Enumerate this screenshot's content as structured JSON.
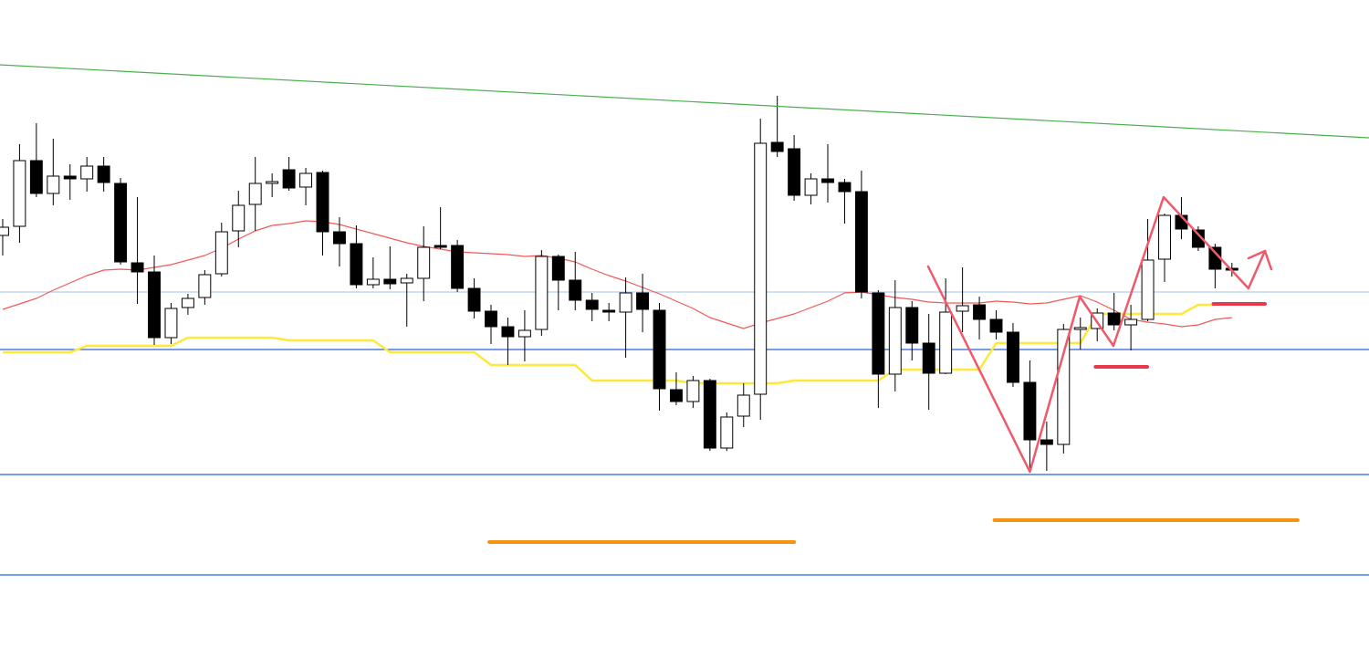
{
  "chart_data": {
    "type": "candlestick",
    "xlim": [
      -0.16,
      81.14
    ],
    "ylim": [
      0,
      709
    ],
    "up_color": "#ffffff",
    "down_color": "#000000",
    "open": [
      451,
      461,
      533,
      497,
      516,
      513,
      527,
      508,
      421,
      411,
      339,
      372,
      383,
      409,
      456,
      485,
      508,
      523,
      504,
      520,
      455,
      442,
      397,
      403,
      399,
      404,
      440,
      440,
      393,
      368,
      351,
      340,
      348,
      428,
      402,
      380,
      369,
      367,
      388,
      369,
      282,
      269,
      292,
      218,
      253,
      277,
      553,
      546,
      495,
      513,
      509,
      499,
      388,
      299,
      372,
      333,
      300,
      368,
      375,
      359,
      345,
      290,
      227,
      222,
      348,
      349,
      366,
      353,
      359,
      425,
      473,
      457,
      438,
      415
    ],
    "high": [
      469,
      551,
      574,
      557,
      529,
      537,
      537,
      514,
      493,
      429,
      377,
      387,
      413,
      465,
      500,
      537,
      519,
      537,
      525,
      522,
      471,
      462,
      427,
      439,
      409,
      461,
      482,
      446,
      404,
      375,
      361,
      369,
      435,
      430,
      433,
      388,
      377,
      405,
      409,
      377,
      301,
      297,
      294,
      257,
      289,
      579,
      604,
      561,
      519,
      551,
      513,
      522,
      391,
      402,
      379,
      365,
      404,
      416,
      384,
      369,
      355,
      314,
      247,
      354,
      361,
      371,
      388,
      375,
      469,
      475,
      493,
      461,
      442,
      421
    ],
    "low": [
      429,
      443,
      493,
      484,
      490,
      499,
      499,
      419,
      376,
      331,
      332,
      364,
      375,
      406,
      438,
      456,
      493,
      500,
      484,
      429,
      417,
      393,
      393,
      392,
      351,
      379,
      436,
      389,
      360,
      332,
      309,
      313,
      341,
      369,
      369,
      357,
      357,
      317,
      345,
      259,
      265,
      262,
      215,
      215,
      241,
      249,
      537,
      489,
      485,
      487,
      464,
      382,
      262,
      280,
      314,
      260,
      299,
      345,
      337,
      337,
      285,
      196,
      193,
      212,
      326,
      335,
      347,
      325,
      357,
      400,
      447,
      434,
      393,
      406
    ],
    "close": [
      460,
      533,
      497,
      516,
      513,
      527,
      509,
      422,
      411,
      339,
      371,
      382,
      408,
      455,
      484,
      508,
      510,
      503,
      519,
      455,
      442,
      397,
      403,
      398,
      404,
      438,
      438,
      393,
      368,
      351,
      340,
      347,
      428,
      402,
      380,
      370,
      367,
      388,
      370,
      283,
      269,
      292,
      218,
      252,
      276,
      552,
      543,
      495,
      513,
      509,
      499,
      389,
      299,
      372,
      333,
      300,
      367,
      374,
      359,
      345,
      290,
      227,
      222,
      348,
      350,
      366,
      353,
      359,
      424,
      473,
      458,
      438,
      414,
      413
    ],
    "series": [
      {
        "color": "#f05a5a",
        "values": [
          370,
          376,
          382,
          391,
          399,
          407,
          413,
          414,
          413,
          416,
          419,
          424,
          429,
          437,
          447,
          456,
          462,
          464,
          467,
          466,
          463,
          458,
          453,
          448,
          443,
          439,
          436,
          433,
          432,
          431,
          430,
          428,
          429,
          426,
          422,
          414,
          407,
          401,
          394,
          387,
          379,
          371,
          361,
          355,
          349,
          355,
          360,
          365,
          372,
          379,
          388,
          389,
          386,
          383,
          381,
          378,
          377,
          377,
          377,
          379,
          378,
          376,
          377,
          381,
          385,
          378,
          369,
          359,
          356,
          354,
          351,
          353,
          359,
          361
        ]
      },
      {
        "color": "#ffe83a",
        "values": [
          323,
          323,
          323,
          323,
          323,
          330,
          330,
          330,
          330,
          330,
          330,
          339,
          339,
          339,
          339,
          339,
          339,
          336,
          336,
          336,
          336,
          336,
          336,
          323,
          323,
          323,
          323,
          323,
          323,
          309,
          309,
          309,
          309,
          309,
          309,
          292,
          292,
          292,
          292,
          292,
          292,
          289,
          289,
          289,
          289,
          289,
          289,
          292,
          292,
          292,
          292,
          292,
          292,
          304,
          304,
          304,
          304,
          304,
          304,
          333,
          333,
          333,
          333,
          333,
          333,
          365,
          365,
          365,
          365,
          365,
          365,
          375,
          375,
          null
        ]
      }
    ],
    "hlines": [
      {
        "value": 389,
        "color": "#b3cff2"
      },
      {
        "value": 326,
        "color": "#2a5fd6"
      },
      {
        "value": 189,
        "color": "#2a5fd6"
      },
      {
        "value": 79,
        "color": "#2a5fd6"
      }
    ],
    "segments": [
      {
        "color": "#4caf50",
        "x": [
          -0.16,
          81.14
        ],
        "values": [
          638,
          558
        ]
      },
      {
        "color": "#f5920f",
        "x": [
          28.9,
          47.0
        ],
        "values": [
          115,
          115
        ]
      },
      {
        "color": "#f5920f",
        "x": [
          58.9,
          76.9
        ],
        "values": [
          139,
          139
        ]
      },
      {
        "color": "#e8384a",
        "x": [
          64.9,
          67.97
        ],
        "values": [
          307,
          307
        ]
      },
      {
        "color": "#e8384a",
        "x": [
          71.9,
          74.96
        ],
        "values": [
          376,
          376
        ]
      },
      {
        "color": "#ee5a6a",
        "x": [
          54.96,
          61.0,
          63.96,
          65.96,
          68.94,
          73.98,
          74.96
        ],
        "values": [
          417,
          192,
          384,
          330,
          493,
          393,
          434
        ]
      }
    ]
  }
}
